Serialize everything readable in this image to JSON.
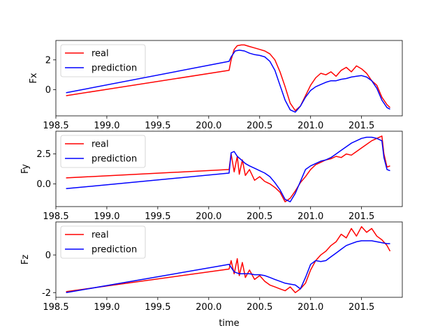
{
  "chart_data": [
    {
      "type": "line",
      "title": "",
      "xlabel": "",
      "ylabel": "Fx",
      "xlim": [
        198.5,
        201.9
      ],
      "ylim": [
        -1.75,
        3.3
      ],
      "xticks": [
        "198.5",
        "199.0",
        "199.5",
        "200.0",
        "200.5",
        "201.0",
        "201.5"
      ],
      "yticks": [
        "0",
        "2"
      ],
      "legend": {
        "placement": "upper-left"
      },
      "series": [
        {
          "name": "real",
          "color": "#ff0000",
          "x": [
            198.6,
            200.2,
            200.22,
            200.25,
            200.28,
            200.32,
            200.35,
            200.4,
            200.45,
            200.5,
            200.55,
            200.6,
            200.65,
            200.7,
            200.75,
            200.8,
            200.85,
            200.9,
            200.95,
            201.0,
            201.05,
            201.1,
            201.15,
            201.2,
            201.25,
            201.3,
            201.35,
            201.4,
            201.45,
            201.5,
            201.55,
            201.6,
            201.65,
            201.7,
            201.75,
            201.78
          ],
          "y": [
            -0.4,
            1.3,
            2.0,
            2.7,
            2.95,
            3.0,
            3.0,
            2.9,
            2.8,
            2.7,
            2.6,
            2.4,
            2.0,
            1.2,
            0.2,
            -0.9,
            -1.4,
            -1.1,
            -0.4,
            0.3,
            0.8,
            1.1,
            1.0,
            1.2,
            0.9,
            1.3,
            1.5,
            1.2,
            1.6,
            1.4,
            1.1,
            0.6,
            0.3,
            -0.5,
            -1.0,
            -1.2
          ]
        },
        {
          "name": "prediction",
          "color": "#0000ff",
          "x": [
            198.6,
            200.2,
            200.22,
            200.26,
            200.3,
            200.35,
            200.4,
            200.45,
            200.5,
            200.55,
            200.6,
            200.65,
            200.7,
            200.75,
            200.8,
            200.85,
            200.9,
            200.95,
            201.0,
            201.05,
            201.1,
            201.15,
            201.2,
            201.25,
            201.3,
            201.35,
            201.4,
            201.45,
            201.5,
            201.55,
            201.6,
            201.65,
            201.7,
            201.75,
            201.78
          ],
          "y": [
            -0.2,
            1.9,
            2.2,
            2.6,
            2.65,
            2.6,
            2.45,
            2.35,
            2.3,
            2.2,
            1.9,
            1.3,
            0.3,
            -0.7,
            -1.35,
            -1.5,
            -1.1,
            -0.5,
            -0.05,
            0.2,
            0.35,
            0.5,
            0.6,
            0.6,
            0.7,
            0.75,
            0.85,
            0.9,
            0.95,
            0.85,
            0.6,
            0.1,
            -0.7,
            -1.2,
            -1.3
          ]
        }
      ]
    },
    {
      "type": "line",
      "title": "",
      "xlabel": "",
      "ylabel": "Fy",
      "xlim": [
        198.5,
        201.9
      ],
      "ylim": [
        -1.9,
        4.4
      ],
      "xticks": [
        "198.5",
        "199.0",
        "199.5",
        "200.0",
        "200.5",
        "201.0",
        "201.5"
      ],
      "yticks": [
        "0.0",
        "2.5"
      ],
      "legend": {
        "placement": "upper-left"
      },
      "series": [
        {
          "name": "real",
          "color": "#ff0000",
          "x": [
            198.6,
            200.2,
            200.22,
            200.25,
            200.28,
            200.3,
            200.33,
            200.36,
            200.4,
            200.45,
            200.5,
            200.55,
            200.6,
            200.65,
            200.7,
            200.75,
            200.8,
            200.85,
            200.9,
            200.95,
            201.0,
            201.05,
            201.1,
            201.15,
            201.2,
            201.25,
            201.3,
            201.35,
            201.4,
            201.45,
            201.5,
            201.55,
            201.6,
            201.65,
            201.7,
            201.72,
            201.75,
            201.78
          ],
          "y": [
            0.5,
            1.2,
            2.5,
            1.0,
            2.3,
            0.8,
            2.0,
            0.7,
            1.2,
            0.3,
            0.6,
            0.2,
            0.0,
            -0.3,
            -0.7,
            -1.5,
            -1.2,
            -0.6,
            0.1,
            0.6,
            1.2,
            1.6,
            1.8,
            2.0,
            2.1,
            2.3,
            2.2,
            2.5,
            2.4,
            2.7,
            3.0,
            3.3,
            3.6,
            3.8,
            4.0,
            2.5,
            1.4,
            1.5
          ]
        },
        {
          "name": "prediction",
          "color": "#0000ff",
          "x": [
            198.6,
            200.2,
            200.22,
            200.25,
            200.28,
            200.32,
            200.36,
            200.4,
            200.45,
            200.5,
            200.55,
            200.6,
            200.65,
            200.7,
            200.75,
            200.8,
            200.85,
            200.9,
            200.95,
            201.0,
            201.05,
            201.1,
            201.15,
            201.2,
            201.25,
            201.3,
            201.35,
            201.4,
            201.45,
            201.5,
            201.55,
            201.6,
            201.65,
            201.7,
            201.72,
            201.75,
            201.78
          ],
          "y": [
            -0.4,
            0.9,
            2.6,
            2.7,
            2.3,
            2.0,
            1.7,
            1.5,
            1.3,
            1.1,
            0.9,
            0.6,
            0.1,
            -0.5,
            -1.3,
            -1.5,
            -0.8,
            0.2,
            1.2,
            1.5,
            1.7,
            1.9,
            2.0,
            2.2,
            2.5,
            2.8,
            3.1,
            3.4,
            3.6,
            3.8,
            3.9,
            3.9,
            3.8,
            3.6,
            2.2,
            1.2,
            1.1
          ]
        }
      ]
    },
    {
      "type": "line",
      "title": "",
      "xlabel": "time",
      "ylabel": "Fz",
      "xlim": [
        198.5,
        201.9
      ],
      "ylim": [
        -2.25,
        1.75
      ],
      "xticks": [
        "198.5",
        "199.0",
        "199.5",
        "200.0",
        "200.5",
        "201.0",
        "201.5"
      ],
      "yticks": [
        "-2",
        "0"
      ],
      "legend": {
        "placement": "upper-left"
      },
      "series": [
        {
          "name": "real",
          "color": "#ff0000",
          "x": [
            198.6,
            200.2,
            200.22,
            200.25,
            200.28,
            200.3,
            200.33,
            200.36,
            200.4,
            200.45,
            200.5,
            200.55,
            200.6,
            200.65,
            200.7,
            200.75,
            200.8,
            200.85,
            200.9,
            200.95,
            201.0,
            201.05,
            201.1,
            201.15,
            201.2,
            201.25,
            201.3,
            201.35,
            201.4,
            201.45,
            201.5,
            201.55,
            201.6,
            201.65,
            201.7,
            201.75,
            201.78
          ],
          "y": [
            -1.95,
            -0.75,
            -0.3,
            -1.0,
            -0.2,
            -1.1,
            -0.4,
            -1.2,
            -0.8,
            -1.3,
            -1.1,
            -1.4,
            -1.6,
            -1.7,
            -1.8,
            -1.9,
            -1.7,
            -2.0,
            -1.8,
            -1.5,
            -0.8,
            -0.3,
            0.0,
            0.2,
            0.5,
            0.7,
            1.1,
            0.9,
            1.4,
            1.0,
            1.5,
            1.2,
            1.4,
            1.0,
            0.8,
            0.5,
            0.2
          ]
        },
        {
          "name": "prediction",
          "color": "#0000ff",
          "x": [
            198.6,
            200.2,
            200.25,
            200.3,
            200.35,
            200.4,
            200.45,
            200.5,
            200.55,
            200.6,
            200.65,
            200.7,
            200.75,
            200.8,
            200.85,
            200.9,
            200.95,
            201.0,
            201.05,
            201.1,
            201.15,
            201.2,
            201.25,
            201.3,
            201.35,
            201.4,
            201.45,
            201.5,
            201.55,
            201.6,
            201.65,
            201.7,
            201.75,
            201.78
          ],
          "y": [
            -2.0,
            -0.5,
            -0.9,
            -1.0,
            -1.0,
            -1.0,
            -1.05,
            -1.05,
            -1.1,
            -1.2,
            -1.3,
            -1.4,
            -1.5,
            -1.55,
            -1.6,
            -1.8,
            -1.2,
            -0.5,
            -0.3,
            -0.35,
            -0.3,
            -0.1,
            0.1,
            0.3,
            0.5,
            0.6,
            0.7,
            0.75,
            0.75,
            0.75,
            0.7,
            0.65,
            0.6,
            0.6
          ]
        }
      ]
    }
  ]
}
